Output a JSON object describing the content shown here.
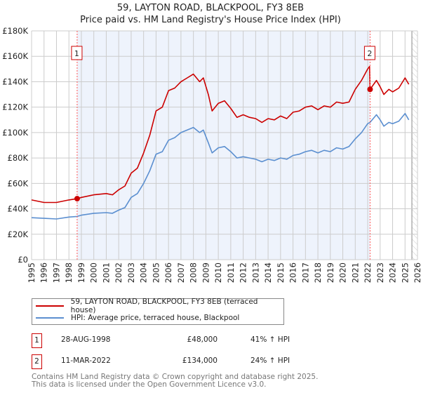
{
  "title_line1": "59, LAYTON ROAD, BLACKPOOL, FY3 8EB",
  "title_line2": "Price paid vs. HM Land Registry's House Price Index (HPI)",
  "colors": {
    "property": "#cc0000",
    "hpi": "#5b8fd0",
    "shade": "#eef3fc",
    "grid": "#cccccc"
  },
  "chart_data": {
    "type": "line",
    "title": "Price paid vs. HM Land Registry's House Price Index (HPI)",
    "xlim": [
      1995,
      2026
    ],
    "ylim": [
      0,
      180000
    ],
    "x_ticks": [
      "1995",
      "1996",
      "1997",
      "1998",
      "1999",
      "2000",
      "2001",
      "2002",
      "2003",
      "2004",
      "2005",
      "2006",
      "2007",
      "2008",
      "2009",
      "2010",
      "2011",
      "2012",
      "2013",
      "2014",
      "2015",
      "2016",
      "2017",
      "2018",
      "2019",
      "2020",
      "2021",
      "2022",
      "2023",
      "2024",
      "2025",
      "2026"
    ],
    "y_ticks": [
      {
        "v": 0,
        "label": "£0"
      },
      {
        "v": 20000,
        "label": "£20K"
      },
      {
        "v": 40000,
        "label": "£40K"
      },
      {
        "v": 60000,
        "label": "£60K"
      },
      {
        "v": 80000,
        "label": "£80K"
      },
      {
        "v": 100000,
        "label": "£100K"
      },
      {
        "v": 120000,
        "label": "£120K"
      },
      {
        "v": 140000,
        "label": "£140K"
      },
      {
        "v": 160000,
        "label": "£160K"
      },
      {
        "v": 180000,
        "label": "£180K"
      }
    ],
    "grid": true,
    "series": [
      {
        "name": "59, LAYTON ROAD, BLACKPOOL, FY3 8EB (terraced house)",
        "x": [
          1995,
          1996,
          1997,
          1998,
          1998.66,
          1999,
          2000,
          2001,
          2001.5,
          2002,
          2002.5,
          2003,
          2003.5,
          2004,
          2004.5,
          2005,
          2005.5,
          2006,
          2006.5,
          2007,
          2007.5,
          2008,
          2008.5,
          2008.8,
          2009.2,
          2009.5,
          2010,
          2010.5,
          2011,
          2011.5,
          2012,
          2012.5,
          2013,
          2013.5,
          2014,
          2014.5,
          2015,
          2015.5,
          2016,
          2016.5,
          2017,
          2017.5,
          2018,
          2018.5,
          2019,
          2019.5,
          2020,
          2020.5,
          2021,
          2021.5,
          2022,
          2022.15,
          2022.19,
          2022.7,
          2023,
          2023.3,
          2023.7,
          2024,
          2024.5,
          2025,
          2025.3
        ],
        "y": [
          47000,
          45000,
          45000,
          47000,
          48000,
          49000,
          51000,
          52000,
          51000,
          55000,
          58000,
          68000,
          72000,
          84000,
          98000,
          117000,
          120000,
          133000,
          135000,
          140000,
          143000,
          146000,
          140000,
          143000,
          130000,
          117000,
          123000,
          125000,
          119000,
          112000,
          114000,
          112000,
          111000,
          108000,
          111000,
          110000,
          113000,
          111000,
          116000,
          117000,
          120000,
          121000,
          118000,
          121000,
          120000,
          124000,
          123000,
          124000,
          134000,
          141000,
          150000,
          152000,
          134000,
          141000,
          136000,
          130000,
          134000,
          132000,
          135000,
          143000,
          138000
        ]
      },
      {
        "name": "HPI: Average price, terraced house, Blackpool",
        "x": [
          1995,
          1996,
          1997,
          1998,
          1998.66,
          1999,
          2000,
          2001,
          2001.5,
          2002,
          2002.5,
          2003,
          2003.5,
          2004,
          2004.5,
          2005,
          2005.5,
          2006,
          2006.5,
          2007,
          2007.5,
          2008,
          2008.5,
          2008.8,
          2009.2,
          2009.5,
          2010,
          2010.5,
          2011,
          2011.5,
          2012,
          2012.5,
          2013,
          2013.5,
          2014,
          2014.5,
          2015,
          2015.5,
          2016,
          2016.5,
          2017,
          2017.5,
          2018,
          2018.5,
          2019,
          2019.5,
          2020,
          2020.5,
          2021,
          2021.5,
          2022,
          2022.19,
          2022.7,
          2023,
          2023.3,
          2023.7,
          2024,
          2024.5,
          2025,
          2025.3
        ],
        "y": [
          33000,
          32500,
          32000,
          33500,
          34000,
          35000,
          36500,
          37000,
          36500,
          39000,
          41000,
          49000,
          52000,
          60000,
          70000,
          83000,
          85000,
          94000,
          96000,
          100000,
          102000,
          104000,
          100000,
          102000,
          92000,
          84000,
          88000,
          89000,
          85000,
          80000,
          81000,
          80000,
          79000,
          77000,
          79000,
          78000,
          80000,
          79000,
          82000,
          83000,
          85000,
          86000,
          84000,
          86000,
          85000,
          88000,
          87000,
          89000,
          95000,
          100000,
          107000,
          108000,
          114000,
          110000,
          105000,
          108000,
          107000,
          109000,
          115000,
          110000
        ]
      }
    ],
    "sales": [
      {
        "id": "1",
        "x": 1998.66,
        "y": 48000
      },
      {
        "id": "2",
        "x": 2022.19,
        "y": 134000
      }
    ],
    "legend_placement": "below"
  },
  "legend": {
    "property": "59, LAYTON ROAD, BLACKPOOL, FY3 8EB (terraced house)",
    "hpi": "HPI: Average price, terraced house, Blackpool"
  },
  "transactions": [
    {
      "id": "1",
      "date": "28-AUG-1998",
      "price": "£48,000",
      "hpi": "41% ↑ HPI"
    },
    {
      "id": "2",
      "date": "11-MAR-2022",
      "price": "£134,000",
      "hpi": "24% ↑ HPI"
    }
  ],
  "footer": {
    "line1": "Contains HM Land Registry data © Crown copyright and database right 2025.",
    "line2": "This data is licensed under the Open Government Licence v3.0."
  }
}
